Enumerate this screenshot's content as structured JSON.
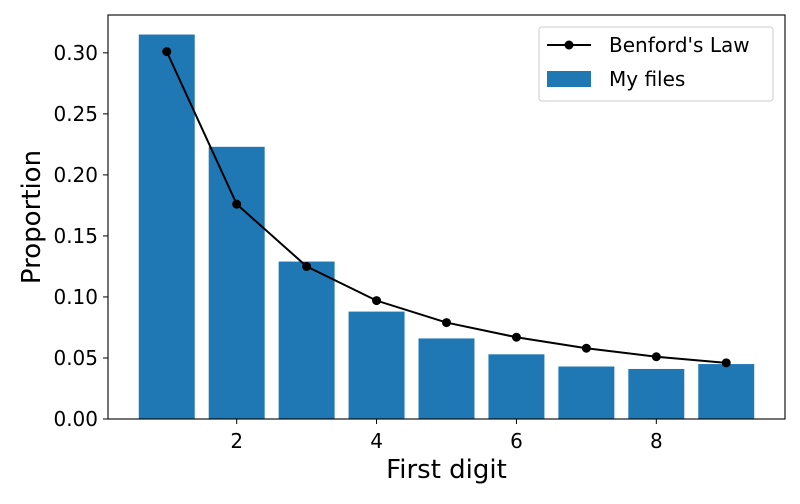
{
  "chart_data": {
    "type": "bar",
    "title": "",
    "xlabel": "First digit",
    "ylabel": "Proportion",
    "categories": [
      1,
      2,
      3,
      4,
      5,
      6,
      7,
      8,
      9
    ],
    "xlim": [
      0.16,
      9.84
    ],
    "ylim": [
      0,
      0.331
    ],
    "xticks": [
      2,
      4,
      6,
      8
    ],
    "xtick_labels": [
      "2",
      "4",
      "6",
      "8"
    ],
    "yticks": [
      0.0,
      0.05,
      0.1,
      0.15,
      0.2,
      0.25,
      0.3
    ],
    "ytick_labels": [
      "0.00",
      "0.05",
      "0.10",
      "0.15",
      "0.20",
      "0.25",
      "0.30"
    ],
    "grid": false,
    "legend_position": "upper right",
    "series": [
      {
        "name": "My files",
        "type": "bar",
        "color": "#1f77b4",
        "bar_width": 0.8,
        "values": [
          0.315,
          0.223,
          0.129,
          0.088,
          0.066,
          0.053,
          0.043,
          0.041,
          0.045
        ]
      },
      {
        "name": "Benford's Law",
        "type": "line",
        "color": "#000000",
        "marker": "circle",
        "values": [
          0.301,
          0.176,
          0.125,
          0.097,
          0.079,
          0.067,
          0.058,
          0.051,
          0.046
        ]
      }
    ]
  },
  "legend": {
    "items": [
      {
        "label": "Benford's Law",
        "kind": "line-marker",
        "color": "#000000"
      },
      {
        "label": "My files",
        "kind": "patch",
        "color": "#1f77b4"
      }
    ]
  }
}
